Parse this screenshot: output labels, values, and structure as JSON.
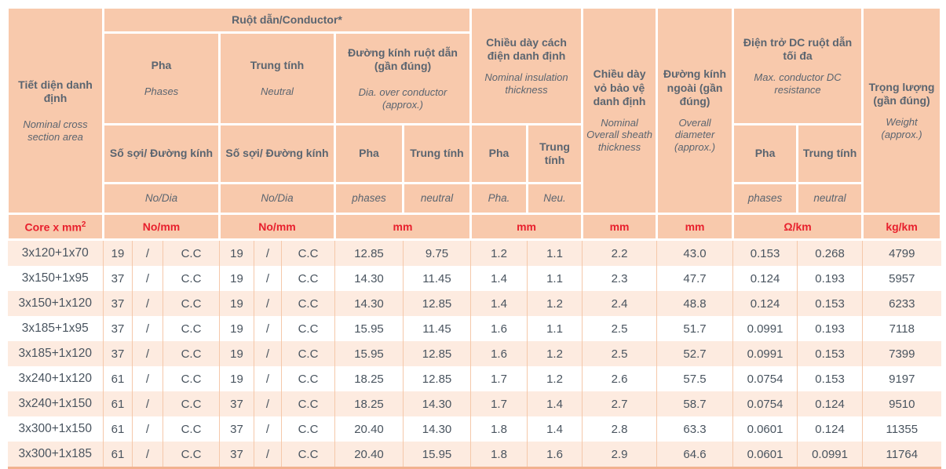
{
  "colors": {
    "header_bg": "#f8c9ac",
    "row_alt_bg": "#fdebe0",
    "row_bg": "#ffffff",
    "unit_text_red": "#e8202d",
    "header_text": "#5b6570",
    "data_text": "#49545f",
    "grid_thin": "#f5c8aa",
    "bottom_edge": "#f2b18f"
  },
  "table": {
    "header": {
      "section": {
        "vn": "Tiết diện danh định",
        "en": "Nominal cross section area"
      },
      "conductor_group": "Ruột dẫn/Conductor*",
      "phases": {
        "vn": "Pha",
        "en": "Phases"
      },
      "neutral": {
        "vn": "Trung tính",
        "en": "Neutral"
      },
      "strands_phase": {
        "vn": "Số sợi/ Đường kính",
        "en": "No/Dia"
      },
      "strands_neutral": {
        "vn": "Số sợi/ Đường kính",
        "en": "No/Dia"
      },
      "dia_over_conductor": {
        "vn": "Đường kính ruột dẫn (gần đúng)",
        "en": "Dia. over conductor (approx.)",
        "pha": "Pha",
        "trung_tinh": "Trung tính",
        "phases": "phases",
        "neutral": "neutral"
      },
      "insulation": {
        "vn": "Chiều dày cách điện danh định",
        "en": "Nominal insulation thickness",
        "pha": "Pha",
        "trung_tinh": "Trung tính",
        "pha_abbr": "Pha.",
        "neu_abbr": "Neu."
      },
      "sheath": {
        "vn": "Chiều dày vỏ bảo vệ danh định",
        "en": "Nominal Overall sheath thickness"
      },
      "overall_diameter": {
        "vn": "Đường kính ngoài (gần đúng)",
        "en": "Overall diameter (approx.)"
      },
      "dc_resistance": {
        "vn": "Điện trở DC ruột dẫn tối đa",
        "en": "Max. conductor DC resistance",
        "pha": "Pha",
        "trung_tinh": "Trung tính",
        "phases": "phases",
        "neutral": "neutral"
      },
      "weight": {
        "vn": "Trọng lượng (gần đúng)",
        "en": "Weight (approx.)"
      }
    },
    "units": {
      "core": "Core x mm",
      "core_sup": "2",
      "no_mm_phase": "No/mm",
      "no_mm_neutral": "No/mm",
      "mm_dia": "mm",
      "mm_insulation": "mm",
      "mm_sheath": "mm",
      "mm_overall": "mm",
      "ohm_km": "Ω/km",
      "kg_km": "kg/km"
    },
    "rows": [
      [
        "3x120+1x70",
        "19",
        "/",
        "C.C",
        "19",
        "/",
        "C.C",
        "12.85",
        "9.75",
        "1.2",
        "1.1",
        "2.2",
        "43.0",
        "0.153",
        "0.268",
        "4799"
      ],
      [
        "3x150+1x95",
        "37",
        "/",
        "C.C",
        "19",
        "/",
        "C.C",
        "14.30",
        "11.45",
        "1.4",
        "1.1",
        "2.3",
        "47.7",
        "0.124",
        "0.193",
        "5957"
      ],
      [
        "3x150+1x120",
        "37",
        "/",
        "C.C",
        "19",
        "/",
        "C.C",
        "14.30",
        "12.85",
        "1.4",
        "1.2",
        "2.4",
        "48.8",
        "0.124",
        "0.153",
        "6233"
      ],
      [
        "3x185+1x95",
        "37",
        "/",
        "C.C",
        "19",
        "/",
        "C.C",
        "15.95",
        "11.45",
        "1.6",
        "1.1",
        "2.5",
        "51.7",
        "0.0991",
        "0.193",
        "7118"
      ],
      [
        "3x185+1x120",
        "37",
        "/",
        "C.C",
        "19",
        "/",
        "C.C",
        "15.95",
        "12.85",
        "1.6",
        "1.2",
        "2.5",
        "52.7",
        "0.0991",
        "0.153",
        "7399"
      ],
      [
        "3x240+1x120",
        "61",
        "/",
        "C.C",
        "19",
        "/",
        "C.C",
        "18.25",
        "12.85",
        "1.7",
        "1.2",
        "2.6",
        "57.5",
        "0.0754",
        "0.153",
        "9197"
      ],
      [
        "3x240+1x150",
        "61",
        "/",
        "C.C",
        "37",
        "/",
        "C.C",
        "18.25",
        "14.30",
        "1.7",
        "1.4",
        "2.7",
        "58.7",
        "0.0754",
        "0.124",
        "9510"
      ],
      [
        "3x300+1x150",
        "61",
        "/",
        "C.C",
        "37",
        "/",
        "C.C",
        "20.40",
        "14.30",
        "1.8",
        "1.4",
        "2.8",
        "63.3",
        "0.0601",
        "0.124",
        "11355"
      ],
      [
        "3x300+1x185",
        "61",
        "/",
        "C.C",
        "37",
        "/",
        "C.C",
        "20.40",
        "15.95",
        "1.8",
        "1.6",
        "2.9",
        "64.6",
        "0.0601",
        "0.0991",
        "11764"
      ]
    ]
  }
}
